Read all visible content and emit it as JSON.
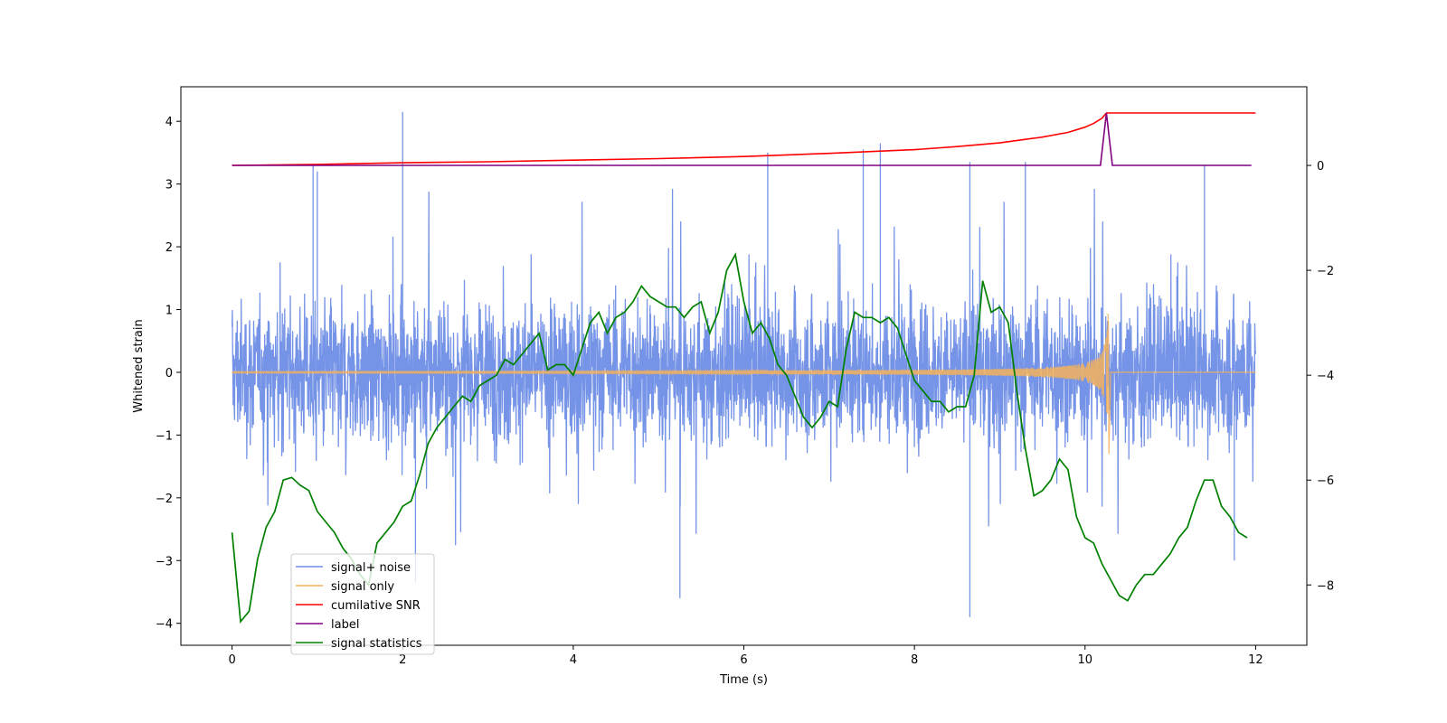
{
  "chart_data": {
    "type": "line",
    "xlabel": "Time (s)",
    "ylabel": "Whitened strain",
    "xlim": [
      -0.6,
      12.6
    ],
    "ylim": [
      -4.35,
      4.55
    ],
    "y2lim": [
      -9.15,
      1.5
    ],
    "xticks": [
      0,
      2,
      4,
      6,
      8,
      10,
      12
    ],
    "yticks": [
      -4,
      -3,
      -2,
      -1,
      0,
      1,
      2,
      3,
      4
    ],
    "y2ticks": [
      -8,
      -6,
      -4,
      -2,
      0
    ],
    "colors": {
      "noise": "#6f8ee6",
      "signal": "#f5b15a",
      "snr": "#ff0000",
      "label": "#800080",
      "stats": "#008000"
    },
    "series": [
      {
        "name": "signal+ noise",
        "axis": "left",
        "description_note": "dense noisy trace",
        "t_range": [
          0,
          12
        ],
        "amplitude_envelope": [
          -2.2,
          2.7
        ],
        "spikes": [
          [
            0.95,
            3.3
          ],
          [
            1.0,
            3.2
          ],
          [
            2.0,
            4.15
          ],
          [
            6.28,
            3.5
          ],
          [
            7.4,
            3.55
          ],
          [
            7.6,
            3.65
          ],
          [
            8.65,
            3.35
          ],
          [
            9.3,
            3.35
          ],
          [
            11.4,
            3.3
          ],
          [
            2.15,
            -3.35
          ],
          [
            5.25,
            -3.6
          ],
          [
            8.65,
            -3.9
          ],
          [
            11.75,
            -3.0
          ]
        ]
      },
      {
        "name": "signal only",
        "axis": "left",
        "t_range": [
          0,
          10.3
        ],
        "chirp_end": 10.28,
        "peak_amplitude": 1.45
      },
      {
        "name": "cumilative SNR",
        "axis": "right",
        "t": [
          0,
          1,
          2,
          3,
          4,
          5,
          6,
          7,
          8,
          8.5,
          9,
          9.5,
          9.8,
          10.0,
          10.1,
          10.2,
          10.25,
          10.3,
          12
        ],
        "values": [
          0.0,
          0.02,
          0.05,
          0.07,
          0.1,
          0.13,
          0.17,
          0.23,
          0.3,
          0.36,
          0.43,
          0.54,
          0.63,
          0.73,
          0.8,
          0.9,
          1.0,
          1.0,
          1.0
        ]
      },
      {
        "name": "label",
        "axis": "right",
        "t": [
          0,
          10.18,
          10.25,
          10.32,
          11.95
        ],
        "values": [
          0,
          0,
          1,
          0,
          0
        ]
      },
      {
        "name": "signal statistics",
        "axis": "right",
        "t": [
          0,
          0.1,
          0.2,
          0.3,
          0.4,
          0.5,
          0.6,
          0.7,
          0.8,
          0.9,
          1.0,
          1.1,
          1.2,
          1.3,
          1.4,
          1.5,
          1.6,
          1.7,
          1.8,
          1.9,
          2.0,
          2.1,
          2.2,
          2.3,
          2.4,
          2.5,
          2.6,
          2.7,
          2.8,
          2.9,
          3.0,
          3.1,
          3.2,
          3.3,
          3.4,
          3.5,
          3.6,
          3.7,
          3.8,
          3.9,
          4.0,
          4.1,
          4.2,
          4.3,
          4.4,
          4.5,
          4.6,
          4.7,
          4.8,
          4.9,
          5.0,
          5.1,
          5.2,
          5.3,
          5.4,
          5.5,
          5.6,
          5.7,
          5.8,
          5.9,
          6.0,
          6.1,
          6.2,
          6.3,
          6.4,
          6.5,
          6.6,
          6.7,
          6.8,
          6.9,
          7.0,
          7.1,
          7.2,
          7.3,
          7.4,
          7.5,
          7.6,
          7.7,
          7.8,
          7.9,
          8.0,
          8.1,
          8.2,
          8.3,
          8.4,
          8.5,
          8.6,
          8.7,
          8.8,
          8.9,
          9.0,
          9.1,
          9.2,
          9.3,
          9.4,
          9.5,
          9.6,
          9.7,
          9.8,
          9.9,
          10.0,
          10.1,
          10.2,
          10.3,
          10.4,
          10.5,
          10.6,
          10.7,
          10.8,
          10.9,
          11.0,
          11.1,
          11.2,
          11.3,
          11.4,
          11.5,
          11.6,
          11.7,
          11.8,
          11.9
        ],
        "values": [
          -7.0,
          -8.7,
          -8.5,
          -7.5,
          -6.9,
          -6.6,
          -6.0,
          -5.95,
          -6.1,
          -6.2,
          -6.6,
          -6.8,
          -7.0,
          -7.3,
          -7.5,
          -7.8,
          -8.0,
          -7.2,
          -7.0,
          -6.8,
          -6.5,
          -6.4,
          -5.9,
          -5.3,
          -5.0,
          -4.8,
          -4.6,
          -4.4,
          -4.5,
          -4.2,
          -4.1,
          -4.0,
          -3.7,
          -3.8,
          -3.6,
          -3.4,
          -3.2,
          -3.9,
          -3.8,
          -3.8,
          -4.0,
          -3.5,
          -3.0,
          -2.8,
          -3.2,
          -2.9,
          -2.8,
          -2.6,
          -2.3,
          -2.5,
          -2.6,
          -2.7,
          -2.7,
          -2.9,
          -2.7,
          -2.6,
          -3.2,
          -2.8,
          -2.0,
          -1.7,
          -2.6,
          -3.2,
          -3.0,
          -3.3,
          -3.8,
          -4.0,
          -4.4,
          -4.8,
          -5.0,
          -4.8,
          -4.5,
          -4.6,
          -3.5,
          -2.8,
          -2.9,
          -2.9,
          -3.0,
          -2.9,
          -3.1,
          -3.6,
          -4.1,
          -4.3,
          -4.5,
          -4.5,
          -4.7,
          -4.6,
          -4.6,
          -4.0,
          -2.2,
          -2.8,
          -2.7,
          -3.0,
          -4.3,
          -5.4,
          -6.3,
          -6.2,
          -6.0,
          -5.6,
          -5.8,
          -6.7,
          -7.1,
          -7.2,
          -7.6,
          -7.9,
          -8.2,
          -8.3,
          -8.0,
          -7.8,
          -7.8,
          -7.6,
          -7.4,
          -7.1,
          -6.9,
          -6.4,
          -6.0,
          -6.0,
          -6.5,
          -6.7,
          -7.0,
          -7.1
        ]
      }
    ],
    "legend": {
      "placement": "lower-left",
      "entries": [
        "signal+ noise",
        "signal only",
        "cumilative SNR",
        "label",
        "signal statistics"
      ]
    }
  }
}
